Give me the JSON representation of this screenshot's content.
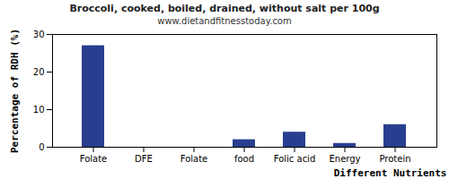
{
  "chart_data": {
    "type": "bar",
    "title": "Broccoli, cooked, boiled, drained, without salt per 100g",
    "subtitle": "www.dietandfitnesstoday.com",
    "x_label": "Different Nutrients",
    "y_label": "Percentage of RDH (%)",
    "categories": [
      "Folate",
      "DFE",
      "Folate",
      "food",
      "Folic acid",
      "Energy",
      "Protein"
    ],
    "values": [
      27,
      0,
      0,
      2,
      4,
      1,
      6
    ],
    "color": "#283f8f",
    "ylim": [
      0,
      30
    ],
    "yticks": [
      0,
      10,
      20,
      30
    ],
    "grid": false
  }
}
